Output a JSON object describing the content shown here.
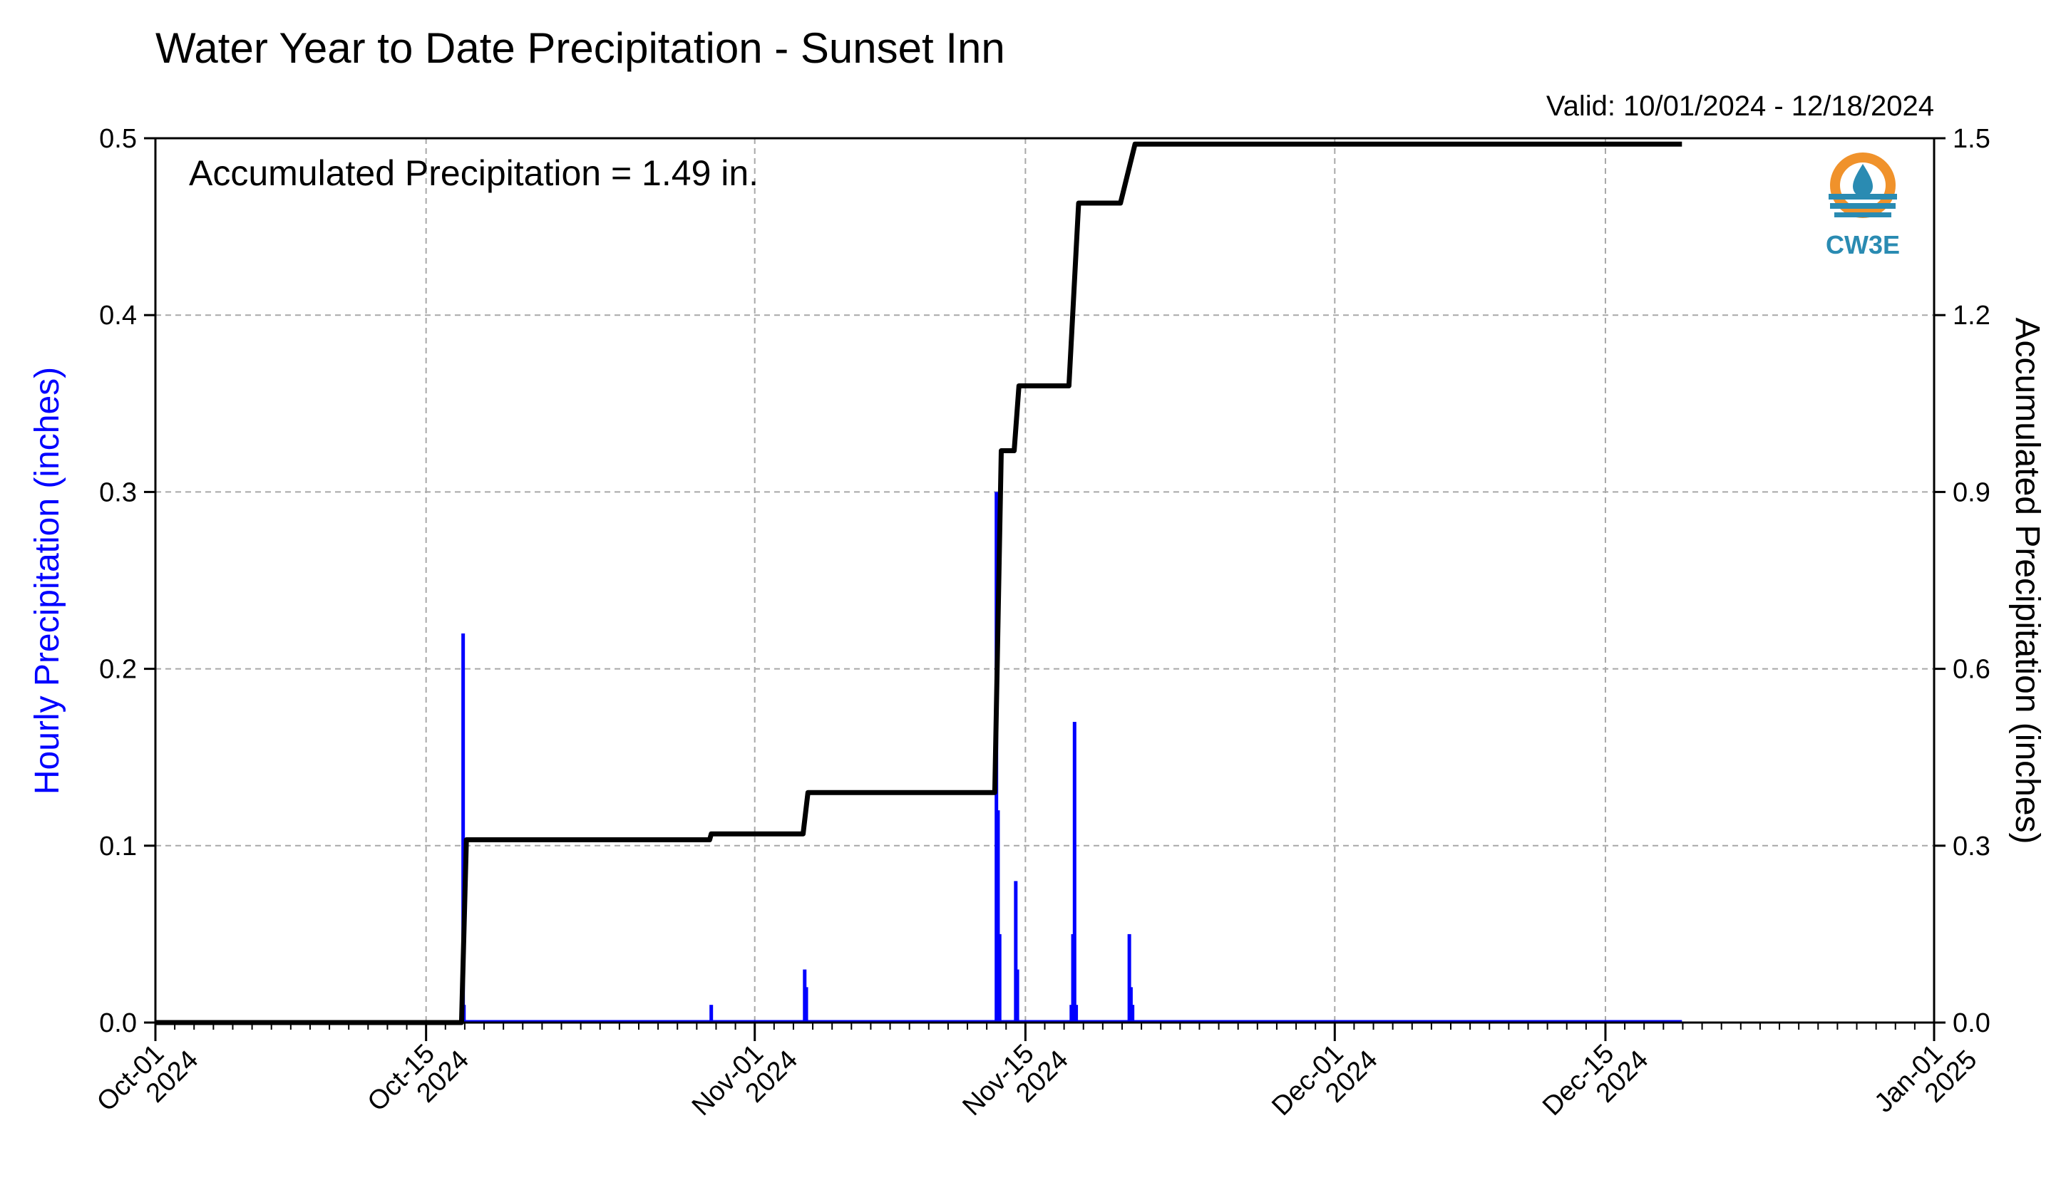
{
  "chart_data": {
    "type": "bar",
    "title": "Water Year to Date Precipitation - Sunset Inn",
    "subtitle": "Valid: 10/01/2024 - 12/18/2024",
    "annotation": "Accumulated Precipitation = 1.49 in.",
    "logo_text": "CW3E",
    "ylabel_left": "Hourly Precipitation (inches)",
    "ylabel_right": "Accumulated Precipitation (inches)",
    "ylim_left": [
      0,
      0.5
    ],
    "ylim_right": [
      0,
      1.5
    ],
    "xlim": [
      "2024-10-01",
      "2025-01-01"
    ],
    "grid": true,
    "left_ticks": [
      "0.0",
      "0.1",
      "0.2",
      "0.3",
      "0.4",
      "0.5"
    ],
    "right_ticks": [
      "0.0",
      "0.3",
      "0.6",
      "0.9",
      "1.2",
      "1.5"
    ],
    "x_ticks": [
      {
        "date": "2024-10-01",
        "line1": "Oct-01",
        "line2": "2024"
      },
      {
        "date": "2024-10-15",
        "line1": "Oct-15",
        "line2": "2024"
      },
      {
        "date": "2024-11-01",
        "line1": "Nov-01",
        "line2": "2024"
      },
      {
        "date": "2024-11-15",
        "line1": "Nov-15",
        "line2": "2024"
      },
      {
        "date": "2024-12-01",
        "line1": "Dec-01",
        "line2": "2024"
      },
      {
        "date": "2024-12-15",
        "line1": "Dec-15",
        "line2": "2024"
      },
      {
        "date": "2025-01-01",
        "line1": "Jan-01",
        "line2": "2025"
      }
    ],
    "series": [
      {
        "type": "bar",
        "axis": "left",
        "color": "#0000ff",
        "points": [
          [
            "2024-10-16 22:00",
            0.22
          ],
          [
            "2024-10-16 23:00",
            0.01
          ],
          [
            "2024-10-29 18:00",
            0.01
          ],
          [
            "2024-11-03 14:00",
            0.03
          ],
          [
            "2024-11-03 16:00",
            0.02
          ],
          [
            "2024-11-13 12:00",
            0.3
          ],
          [
            "2024-11-13 14:00",
            0.12
          ],
          [
            "2024-11-13 16:00",
            0.05
          ],
          [
            "2024-11-14 12:00",
            0.08
          ],
          [
            "2024-11-14 14:00",
            0.03
          ],
          [
            "2024-11-17 09:00",
            0.01
          ],
          [
            "2024-11-17 11:00",
            0.05
          ],
          [
            "2024-11-17 13:00",
            0.17
          ],
          [
            "2024-11-17 15:00",
            0.01
          ],
          [
            "2024-11-20 09:00",
            0.05
          ],
          [
            "2024-11-20 11:00",
            0.02
          ],
          [
            "2024-11-20 13:00",
            0.01
          ]
        ]
      },
      {
        "type": "step-line",
        "axis": "right",
        "color": "#000000",
        "points": [
          [
            "2024-10-01 00:00",
            0.0
          ],
          [
            "2024-10-16 20:00",
            0.0
          ],
          [
            "2024-10-17 02:00",
            0.31
          ],
          [
            "2024-10-29 16:00",
            0.31
          ],
          [
            "2024-10-29 18:00",
            0.32
          ],
          [
            "2024-11-03 12:00",
            0.32
          ],
          [
            "2024-11-03 18:00",
            0.39
          ],
          [
            "2024-11-13 10:00",
            0.39
          ],
          [
            "2024-11-13 18:00",
            0.97
          ],
          [
            "2024-11-14 10:00",
            0.97
          ],
          [
            "2024-11-14 16:00",
            1.08
          ],
          [
            "2024-11-17 06:00",
            1.08
          ],
          [
            "2024-11-17 18:00",
            1.39
          ],
          [
            "2024-11-19 22:00",
            1.39
          ],
          [
            "2024-11-20 16:00",
            1.49
          ],
          [
            "2024-12-18 23:00",
            1.49
          ]
        ]
      }
    ]
  },
  "colors": {
    "bars": "#0000ff",
    "line": "#000000",
    "left_axis_label": "#0000ff",
    "grid": "#a8a8a8",
    "logo_orange": "#f0922b",
    "logo_blue": "#2a8bb2"
  }
}
